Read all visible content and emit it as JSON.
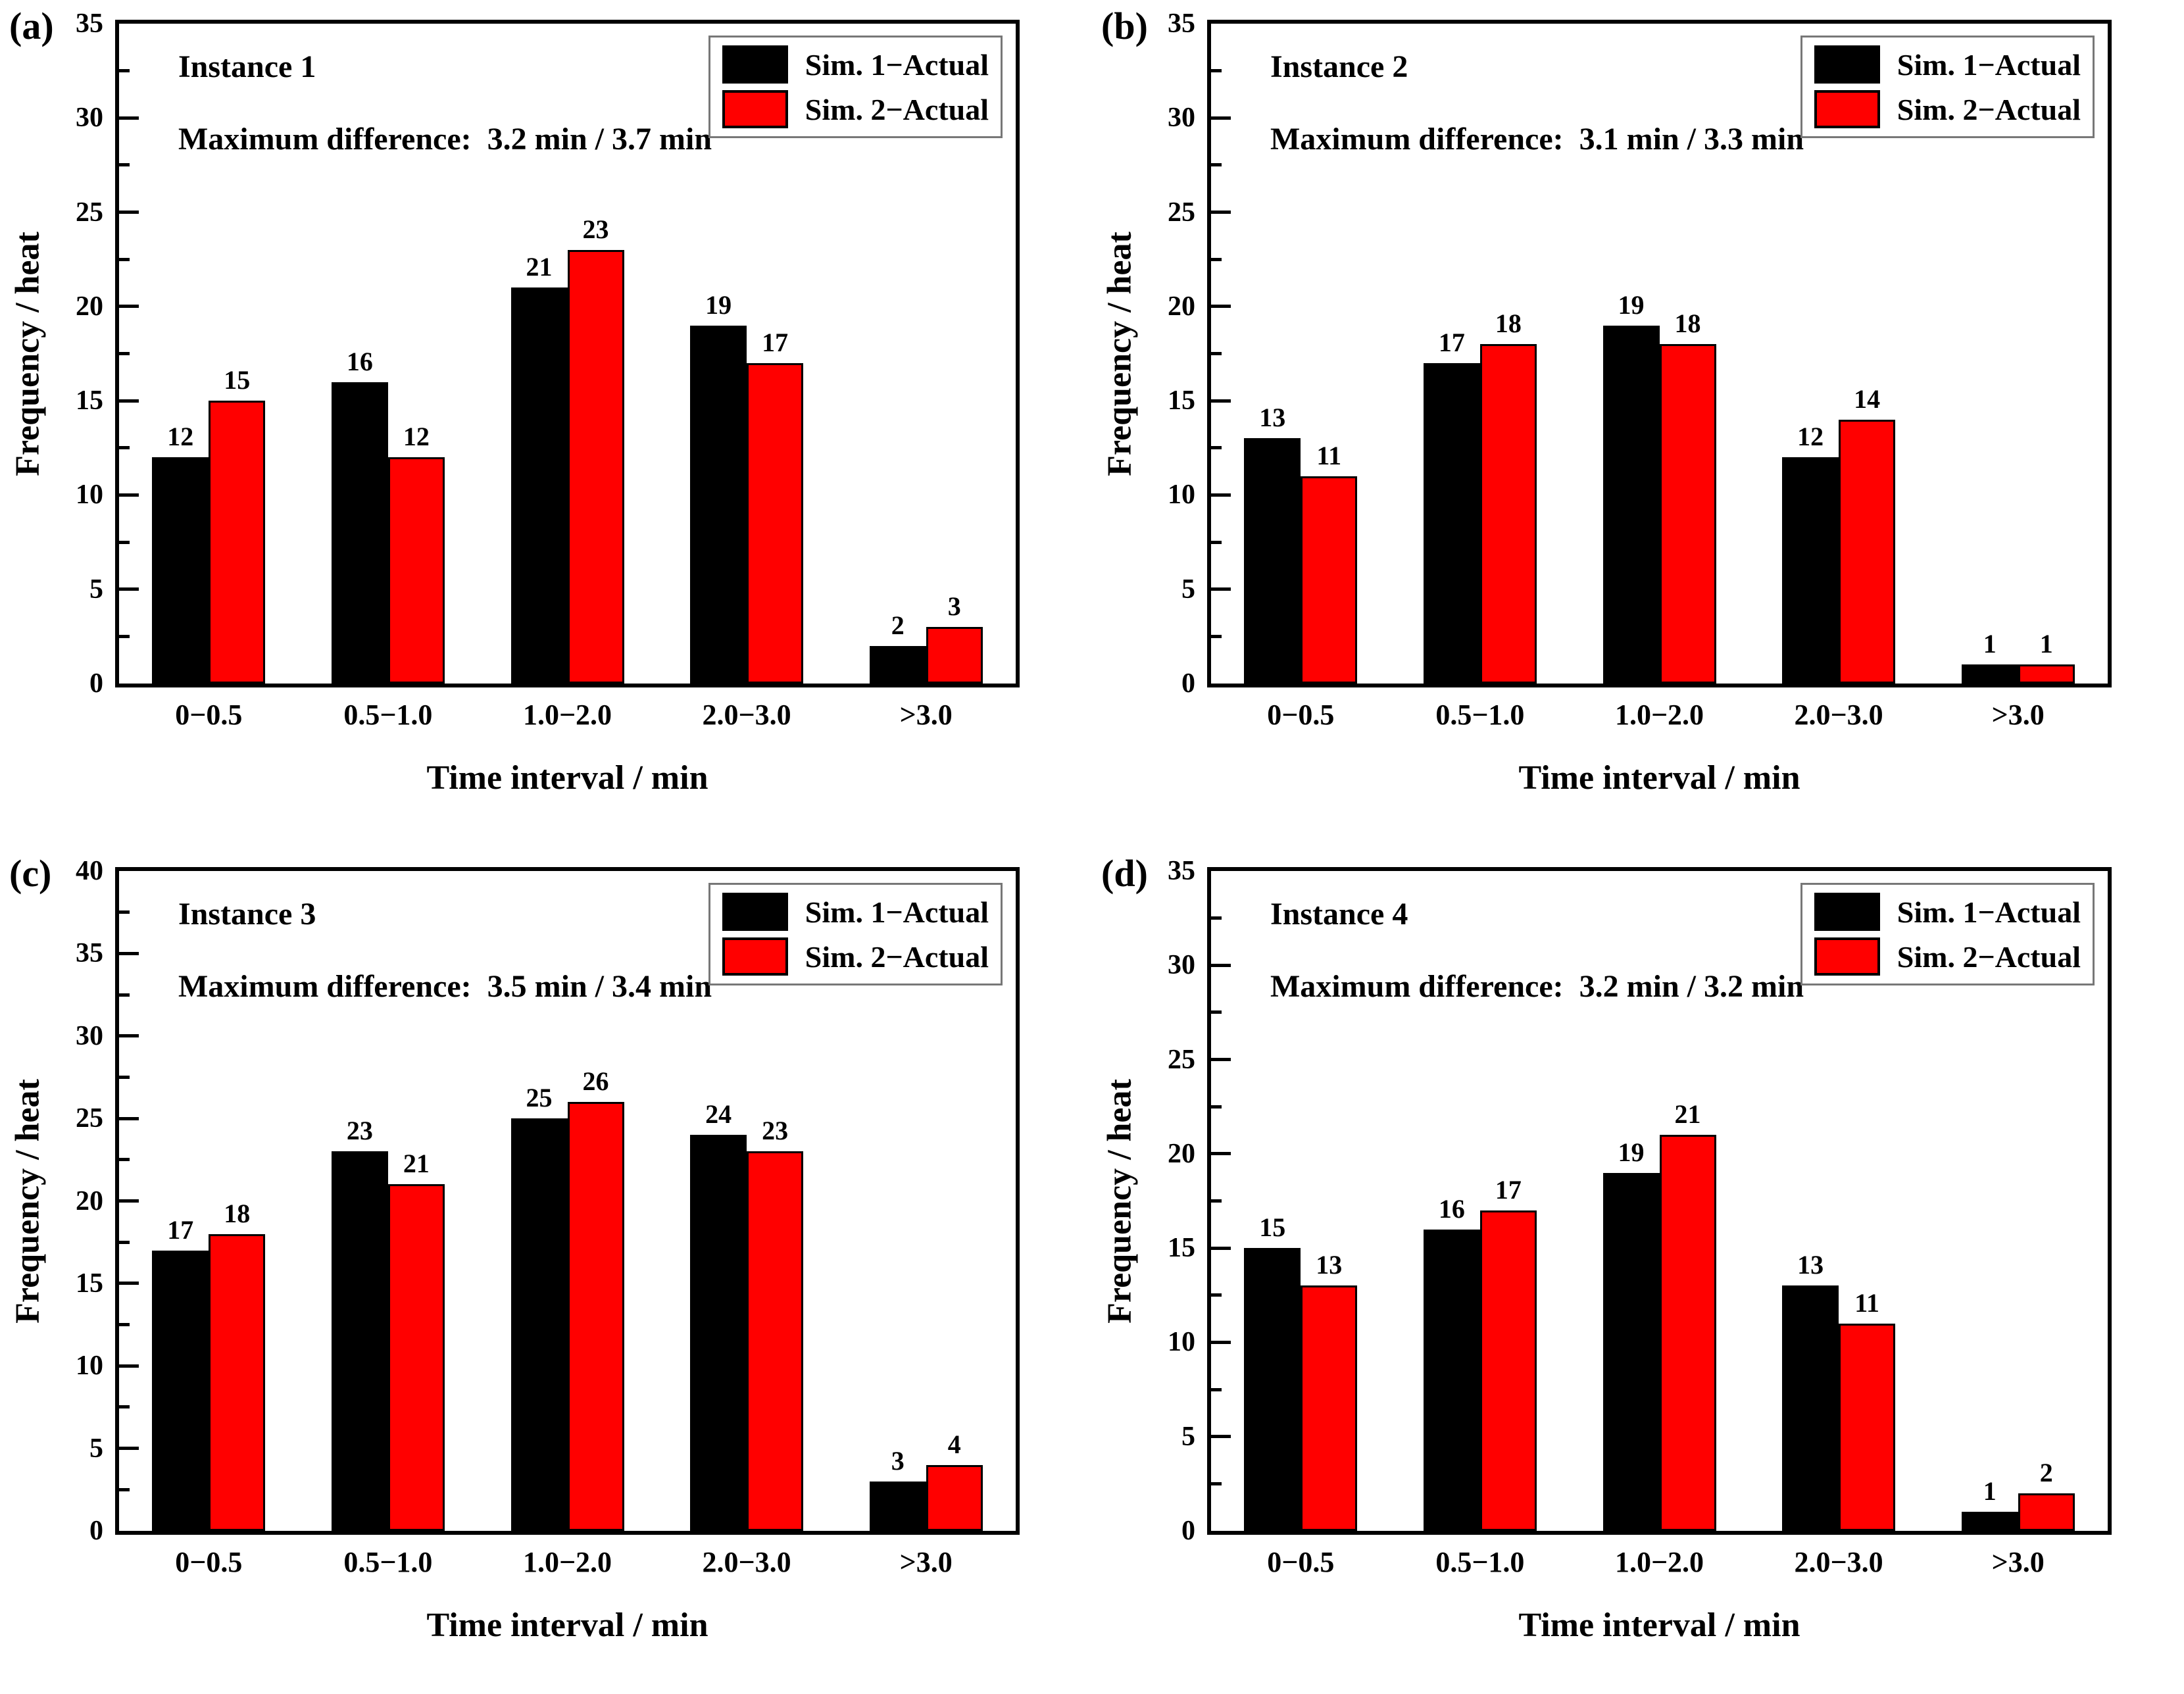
{
  "figure": {
    "background": "#ffffff",
    "bar_fill_colors": {
      "sim1": "#000000",
      "sim2": "#ff0000"
    },
    "bar_edge_color": "#000000",
    "xlabel": "Time interval / min",
    "ylabel": "Frequency / heat",
    "categories": [
      "0−0.5",
      "0.5−1.0",
      "1.0−2.0",
      "2.0−3.0",
      ">3.0"
    ],
    "legend_entries": [
      "Sim. 1−Actual",
      "Sim. 2−Actual"
    ]
  },
  "chart_data": [
    {
      "panel": "(a)",
      "type": "bar",
      "title": "Instance 1",
      "subtitle": "Maximum difference:  3.2 min / 3.7 min",
      "max_difference": "3.2 min / 3.7 min",
      "categories": [
        "0−0.5",
        "0.5−1.0",
        "1.0−2.0",
        "2.0−3.0",
        ">3.0"
      ],
      "series": [
        {
          "name": "Sim. 1−Actual",
          "color": "#000000",
          "values": [
            12,
            16,
            21,
            19,
            2
          ]
        },
        {
          "name": "Sim. 2−Actual",
          "color": "#ff0000",
          "values": [
            15,
            12,
            23,
            17,
            3
          ]
        }
      ],
      "xlabel": "Time interval / min",
      "ylabel": "Frequency / heat",
      "ylim": [
        0,
        35
      ],
      "ytick_major": 5,
      "ytick_minor": 2.5,
      "grid": false,
      "legend_position": "top-right"
    },
    {
      "panel": "(b)",
      "type": "bar",
      "title": "Instance 2",
      "subtitle": "Maximum difference:  3.1 min / 3.3 min",
      "max_difference": "3.1 min / 3.3 min",
      "categories": [
        "0−0.5",
        "0.5−1.0",
        "1.0−2.0",
        "2.0−3.0",
        ">3.0"
      ],
      "series": [
        {
          "name": "Sim. 1−Actual",
          "color": "#000000",
          "values": [
            13,
            17,
            19,
            12,
            1
          ]
        },
        {
          "name": "Sim. 2−Actual",
          "color": "#ff0000",
          "values": [
            11,
            18,
            18,
            14,
            1
          ]
        }
      ],
      "xlabel": "Time interval / min",
      "ylabel": "Frequency / heat",
      "ylim": [
        0,
        35
      ],
      "ytick_major": 5,
      "ytick_minor": 2.5,
      "grid": false,
      "legend_position": "top-right"
    },
    {
      "panel": "(c)",
      "type": "bar",
      "title": "Instance 3",
      "subtitle": "Maximum difference:  3.5 min / 3.4 min",
      "max_difference": "3.5 min / 3.4 min",
      "categories": [
        "0−0.5",
        "0.5−1.0",
        "1.0−2.0",
        "2.0−3.0",
        ">3.0"
      ],
      "series": [
        {
          "name": "Sim. 1−Actual",
          "color": "#000000",
          "values": [
            17,
            23,
            25,
            24,
            3
          ]
        },
        {
          "name": "Sim. 2−Actual",
          "color": "#ff0000",
          "values": [
            18,
            21,
            26,
            23,
            4
          ]
        }
      ],
      "xlabel": "Time interval / min",
      "ylabel": "Frequency / heat",
      "ylim": [
        0,
        40
      ],
      "ytick_major": 5,
      "ytick_minor": 2.5,
      "grid": false,
      "legend_position": "top-right"
    },
    {
      "panel": "(d)",
      "type": "bar",
      "title": "Instance 4",
      "subtitle": "Maximum difference:  3.2 min / 3.2 min",
      "max_difference": "3.2 min / 3.2 min",
      "categories": [
        "0−0.5",
        "0.5−1.0",
        "1.0−2.0",
        "2.0−3.0",
        ">3.0"
      ],
      "series": [
        {
          "name": "Sim. 1−Actual",
          "color": "#000000",
          "values": [
            15,
            16,
            19,
            13,
            1
          ]
        },
        {
          "name": "Sim. 2−Actual",
          "color": "#ff0000",
          "values": [
            13,
            17,
            21,
            11,
            2
          ]
        }
      ],
      "xlabel": "Time interval / min",
      "ylabel": "Frequency / heat",
      "ylim": [
        0,
        35
      ],
      "ytick_major": 5,
      "ytick_minor": 2.5,
      "grid": false,
      "legend_position": "top-right"
    }
  ]
}
